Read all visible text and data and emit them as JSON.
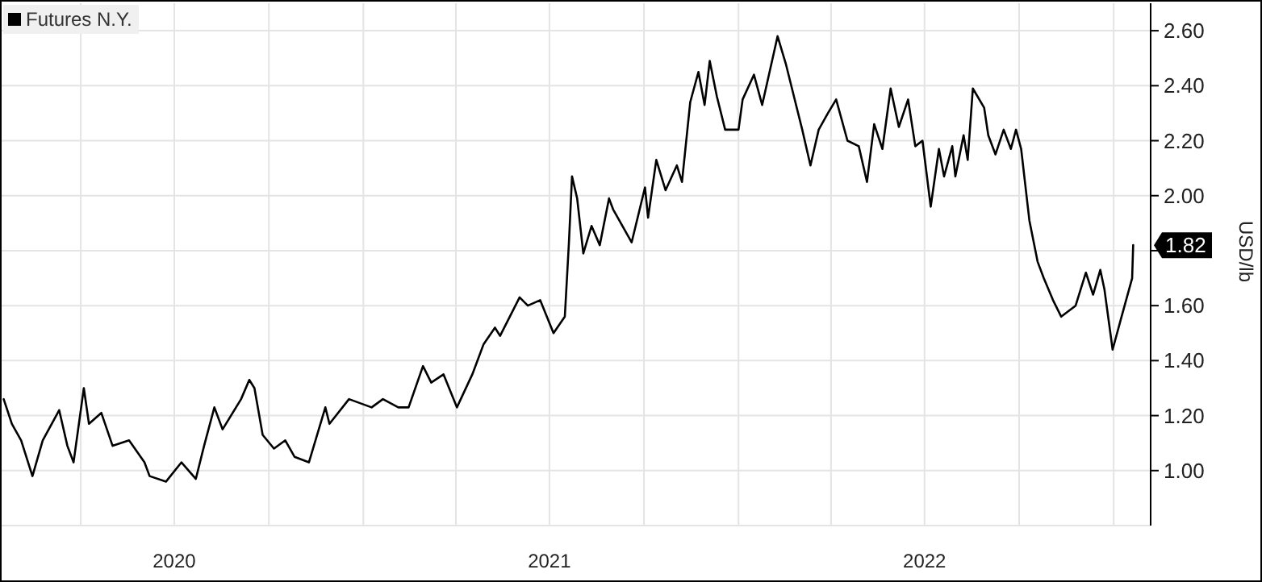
{
  "chart_data": {
    "type": "line",
    "ylabel": "USD/lb",
    "legend": "top left",
    "grid": true,
    "xlim": [
      "2020-01-15",
      "2023-02-06"
    ],
    "xticks": [
      {
        "value": "2020-04-01",
        "label": null
      },
      {
        "value": "2020-07-01",
        "label": "2020"
      },
      {
        "value": "2020-10-01",
        "label": null
      },
      {
        "value": "2021-01-01",
        "label": null
      },
      {
        "value": "2021-04-01",
        "label": null
      },
      {
        "value": "2021-07-01",
        "label": "2021"
      },
      {
        "value": "2021-10-01",
        "label": null
      },
      {
        "value": "2022-01-01",
        "label": null
      },
      {
        "value": "2022-04-01",
        "label": null
      },
      {
        "value": "2022-07-01",
        "label": "2022"
      },
      {
        "value": "2022-10-01",
        "label": null
      },
      {
        "value": "2023-01-01",
        "label": null
      }
    ],
    "ylim": [
      0.8,
      2.7
    ],
    "yticks": [
      {
        "value": 1.0,
        "label": "1.00"
      },
      {
        "value": 1.2,
        "label": "1.20"
      },
      {
        "value": 1.4,
        "label": "1.40"
      },
      {
        "value": 1.6,
        "label": "1.60"
      },
      {
        "value": 1.8,
        "label": null
      },
      {
        "value": 2.0,
        "label": "2.00"
      },
      {
        "value": 2.2,
        "label": "2.20"
      },
      {
        "value": 2.4,
        "label": "2.40"
      },
      {
        "value": 2.6,
        "label": "2.60"
      }
    ],
    "annotations": [
      {
        "text": "1.82",
        "x": "2023-01-20",
        "y": 1.82
      }
    ],
    "series": [
      {
        "name": "Futures N.Y.",
        "color": "#000000",
        "x": [
          "2020-01-17",
          "2020-01-25",
          "2020-02-03",
          "2020-02-14",
          "2020-02-24",
          "2020-03-11",
          "2020-03-19",
          "2020-03-25",
          "2020-04-04",
          "2020-04-09",
          "2020-04-21",
          "2020-05-02",
          "2020-05-18",
          "2020-06-02",
          "2020-06-07",
          "2020-06-23",
          "2020-07-08",
          "2020-07-22",
          "2020-07-30",
          "2020-08-09",
          "2020-08-17",
          "2020-09-04",
          "2020-09-12",
          "2020-09-17",
          "2020-09-25",
          "2020-10-06",
          "2020-10-17",
          "2020-10-26",
          "2020-11-09",
          "2020-11-25",
          "2020-11-29",
          "2020-12-18",
          "2021-01-09",
          "2021-01-20",
          "2021-02-04",
          "2021-02-14",
          "2021-02-28",
          "2021-03-08",
          "2021-03-20",
          "2021-04-02",
          "2021-04-17",
          "2021-04-28",
          "2021-05-09",
          "2021-05-14",
          "2021-06-02",
          "2021-06-10",
          "2021-06-22",
          "2021-07-05",
          "2021-07-16",
          "2021-07-20",
          "2021-07-23",
          "2021-07-28",
          "2021-08-03",
          "2021-08-11",
          "2021-08-19",
          "2021-08-28",
          "2021-09-01",
          "2021-09-19",
          "2021-10-02",
          "2021-10-05",
          "2021-10-13",
          "2021-10-22",
          "2021-11-02",
          "2021-11-07",
          "2021-11-15",
          "2021-11-23",
          "2021-11-29",
          "2021-12-04",
          "2021-12-11",
          "2021-12-19",
          "2022-01-01",
          "2022-01-05",
          "2022-01-16",
          "2022-01-24",
          "2022-02-08",
          "2022-02-16",
          "2022-02-24",
          "2022-03-04",
          "2022-03-12",
          "2022-03-20",
          "2022-03-29",
          "2022-04-06",
          "2022-04-17",
          "2022-04-28",
          "2022-05-06",
          "2022-05-13",
          "2022-05-21",
          "2022-05-29",
          "2022-06-06",
          "2022-06-15",
          "2022-06-22",
          "2022-06-29",
          "2022-07-07",
          "2022-07-15",
          "2022-07-20",
          "2022-07-28",
          "2022-07-31",
          "2022-08-08",
          "2022-08-12",
          "2022-08-17",
          "2022-08-28",
          "2022-09-01",
          "2022-09-08",
          "2022-09-16",
          "2022-09-23",
          "2022-09-28",
          "2022-10-03",
          "2022-10-11",
          "2022-10-19",
          "2022-10-25",
          "2022-11-03",
          "2022-11-11",
          "2022-11-25",
          "2022-12-05",
          "2022-12-12",
          "2022-12-19",
          "2022-12-23",
          "2022-12-31",
          "2023-01-08",
          "2023-01-19",
          "2023-01-20"
        ],
        "values": [
          1.26,
          1.17,
          1.11,
          0.98,
          1.11,
          1.22,
          1.09,
          1.03,
          1.3,
          1.17,
          1.21,
          1.09,
          1.11,
          1.03,
          0.98,
          0.96,
          1.03,
          0.97,
          1.09,
          1.23,
          1.15,
          1.26,
          1.33,
          1.3,
          1.13,
          1.08,
          1.11,
          1.05,
          1.03,
          1.23,
          1.17,
          1.26,
          1.23,
          1.26,
          1.23,
          1.23,
          1.38,
          1.32,
          1.35,
          1.23,
          1.35,
          1.46,
          1.52,
          1.49,
          1.63,
          1.6,
          1.62,
          1.5,
          1.56,
          1.83,
          2.07,
          1.99,
          1.79,
          1.89,
          1.82,
          1.99,
          1.95,
          1.83,
          2.03,
          1.92,
          2.13,
          2.02,
          2.11,
          2.05,
          2.34,
          2.45,
          2.33,
          2.49,
          2.36,
          2.24,
          2.24,
          2.35,
          2.44,
          2.33,
          2.58,
          2.48,
          2.36,
          2.24,
          2.11,
          2.24,
          2.3,
          2.35,
          2.2,
          2.18,
          2.05,
          2.26,
          2.17,
          2.39,
          2.25,
          2.35,
          2.18,
          2.2,
          1.96,
          2.17,
          2.07,
          2.18,
          2.07,
          2.22,
          2.13,
          2.39,
          2.32,
          2.22,
          2.15,
          2.24,
          2.17,
          2.24,
          2.17,
          1.91,
          1.76,
          1.7,
          1.62,
          1.56,
          1.6,
          1.72,
          1.64,
          1.73,
          1.66,
          1.44,
          1.55,
          1.7,
          1.82
        ]
      }
    ]
  }
}
